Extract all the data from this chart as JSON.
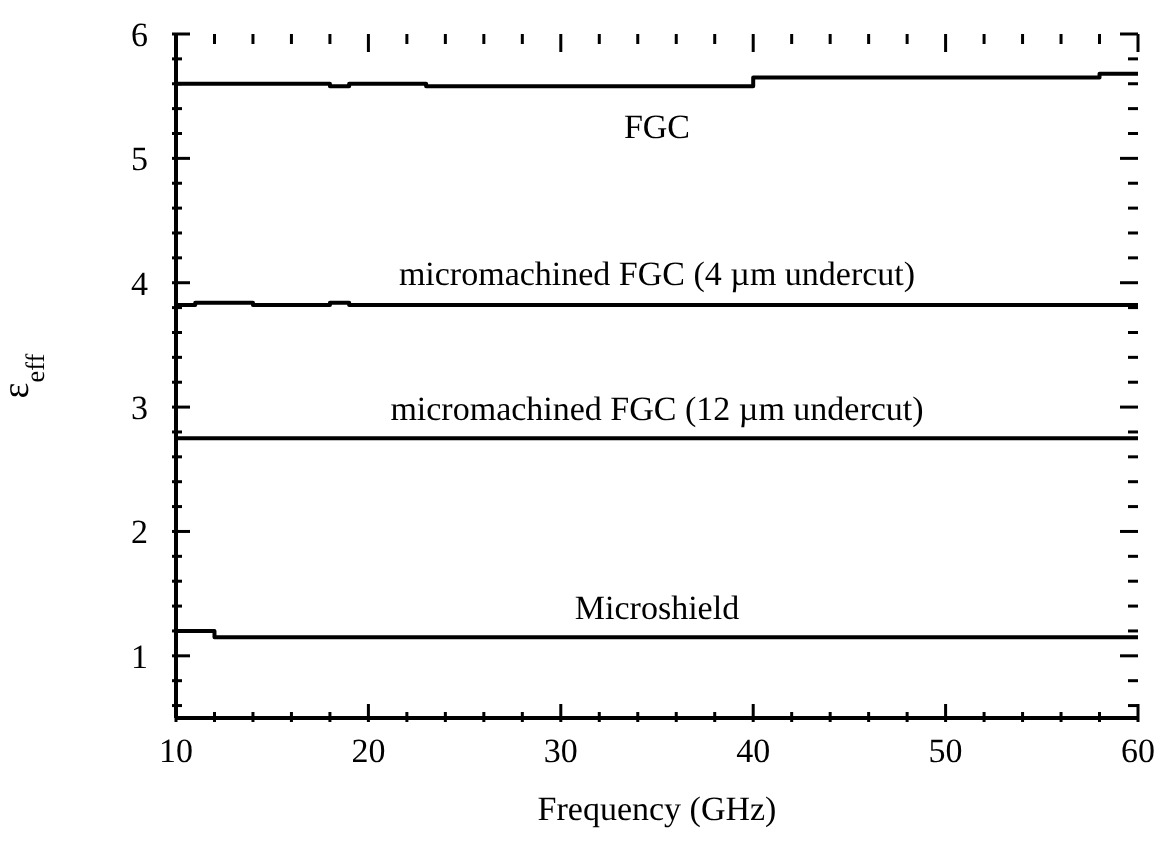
{
  "chart_data": {
    "type": "step",
    "xlabel": "Frequency (GHz)",
    "ylabel": "ε$_{eff}$",
    "xlim": [
      10,
      60
    ],
    "ylim": [
      0.5,
      6
    ],
    "xticks": [
      10,
      {
        "value": 12,
        "label": null
      },
      {
        "value": 14,
        "label": null
      },
      {
        "value": 16,
        "label": null
      },
      {
        "value": 18,
        "label": null
      },
      20,
      {
        "value": 22,
        "label": null
      },
      {
        "value": 24,
        "label": null
      },
      {
        "value": 26,
        "label": null
      },
      {
        "value": 28,
        "label": null
      },
      30,
      {
        "value": 32,
        "label": null
      },
      {
        "value": 34,
        "label": null
      },
      {
        "value": 36,
        "label": null
      },
      {
        "value": 38,
        "label": null
      },
      40,
      {
        "value": 42,
        "label": null
      },
      {
        "value": 44,
        "label": null
      },
      {
        "value": 46,
        "label": null
      },
      {
        "value": 48,
        "label": null
      },
      50,
      {
        "value": 52,
        "label": null
      },
      {
        "value": 54,
        "label": null
      },
      {
        "value": 56,
        "label": null
      },
      {
        "value": 58,
        "label": null
      },
      60
    ],
    "yticks": [
      {
        "value": 0.6,
        "label": null
      },
      {
        "value": 0.8,
        "label": null
      },
      1,
      {
        "value": 1.2,
        "label": null
      },
      {
        "value": 1.4,
        "label": null
      },
      {
        "value": 1.6,
        "label": null
      },
      {
        "value": 1.8,
        "label": null
      },
      2,
      {
        "value": 2.2,
        "label": null
      },
      {
        "value": 2.4,
        "label": null
      },
      {
        "value": 2.6,
        "label": null
      },
      {
        "value": 2.8,
        "label": null
      },
      3,
      {
        "value": 3.2,
        "label": null
      },
      {
        "value": 3.4,
        "label": null
      },
      {
        "value": 3.6,
        "label": null
      },
      {
        "value": 3.8,
        "label": null
      },
      4,
      {
        "value": 4.2,
        "label": null
      },
      {
        "value": 4.4,
        "label": null
      },
      {
        "value": 4.6,
        "label": null
      },
      {
        "value": 4.8,
        "label": null
      },
      5,
      {
        "value": 5.2,
        "label": null
      },
      {
        "value": 5.4,
        "label": null
      },
      {
        "value": 5.6,
        "label": null
      },
      {
        "value": 5.8,
        "label": null
      },
      6
    ],
    "marker": "none",
    "line_style": "solid",
    "series": [
      {
        "name": "FGC",
        "color": "#000000",
        "x": [
          10,
          18,
          19,
          23,
          40,
          58,
          60
        ],
        "values": [
          5.6,
          5.58,
          5.6,
          5.58,
          5.65,
          5.68,
          5.68
        ]
      },
      {
        "name": "micromachined FGC (4 µm undercut)",
        "color": "#000000",
        "x": [
          10,
          11,
          14,
          18,
          19,
          60
        ],
        "values": [
          3.82,
          3.84,
          3.82,
          3.84,
          3.82,
          3.82
        ]
      },
      {
        "name": "micromachined FGC (12 µm undercut)",
        "color": "#000000",
        "x": [
          10,
          60
        ],
        "values": [
          2.75,
          2.75
        ]
      },
      {
        "name": "Microshield",
        "color": "#000000",
        "x": [
          10,
          12,
          60
        ],
        "values": [
          1.2,
          1.15,
          1.15
        ]
      }
    ]
  }
}
